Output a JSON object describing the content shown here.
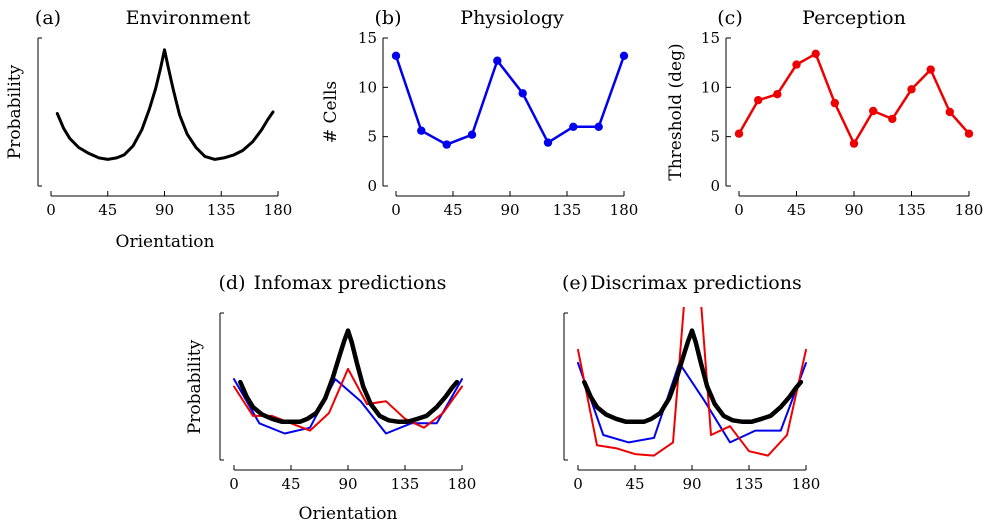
{
  "chart_data": [
    {
      "id": "a",
      "type": "line",
      "panel_label": "(a)",
      "title": "Environment",
      "xlabel": "Orientation",
      "ylabel": "Probability",
      "xticks": [
        0,
        45,
        90,
        135,
        180
      ],
      "xlim": [
        0,
        180
      ],
      "yticks": [],
      "ylim": [
        0,
        1
      ],
      "series": [
        {
          "color": "#000000",
          "width": 3,
          "markers": false,
          "x": [
            5,
            10,
            15,
            22,
            30,
            38,
            45,
            52,
            58,
            65,
            72,
            78,
            83,
            87,
            90,
            93,
            97,
            102,
            108,
            115,
            122,
            130,
            137,
            145,
            152,
            160,
            167,
            172,
            176
          ],
          "y": [
            0.49,
            0.39,
            0.32,
            0.26,
            0.22,
            0.19,
            0.18,
            0.19,
            0.21,
            0.27,
            0.38,
            0.52,
            0.66,
            0.8,
            0.92,
            0.8,
            0.65,
            0.48,
            0.35,
            0.26,
            0.2,
            0.18,
            0.19,
            0.21,
            0.24,
            0.3,
            0.38,
            0.45,
            0.5
          ]
        }
      ]
    },
    {
      "id": "b",
      "type": "line",
      "panel_label": "(b)",
      "title": "Physiology",
      "xlabel": "",
      "ylabel": "# Cells",
      "xticks": [
        0,
        45,
        90,
        135,
        180
      ],
      "xlim": [
        0,
        180
      ],
      "yticks": [
        0,
        5,
        10,
        15
      ],
      "ylim": [
        0,
        15
      ],
      "series": [
        {
          "color": "#0000ee",
          "width": 2.5,
          "markers": true,
          "x": [
            0,
            20,
            40,
            60,
            80,
            100,
            120,
            140,
            160,
            180
          ],
          "y": [
            13.2,
            5.6,
            4.2,
            5.2,
            12.7,
            9.4,
            4.4,
            6.0,
            6.0,
            13.2
          ]
        }
      ]
    },
    {
      "id": "c",
      "type": "line",
      "panel_label": "(c)",
      "title": "Perception",
      "xlabel": "",
      "ylabel": "Threshold (deg)",
      "xticks": [
        0,
        45,
        90,
        135,
        180
      ],
      "xlim": [
        0,
        180
      ],
      "yticks": [
        0,
        5,
        10,
        15
      ],
      "ylim": [
        0,
        15
      ],
      "series": [
        {
          "color": "#ee0000",
          "width": 2.5,
          "markers": true,
          "x": [
            0,
            15,
            30,
            45,
            60,
            75,
            90,
            105,
            120,
            135,
            150,
            165,
            180
          ],
          "y": [
            5.3,
            8.7,
            9.3,
            12.3,
            13.4,
            8.4,
            4.3,
            7.6,
            6.8,
            9.8,
            11.8,
            7.5,
            5.3
          ]
        }
      ]
    },
    {
      "id": "d",
      "type": "line",
      "panel_label": "(d)",
      "title": "Infomax predictions",
      "xlabel": "Orientation",
      "ylabel": "Probability",
      "xticks": [
        0,
        45,
        90,
        135,
        180
      ],
      "xlim": [
        0,
        180
      ],
      "yticks": [],
      "ylim": [
        0,
        1
      ],
      "series": [
        {
          "color": "#0000ee",
          "width": 2,
          "markers": false,
          "x": [
            0,
            20,
            40,
            60,
            80,
            100,
            120,
            140,
            160,
            180
          ],
          "y": [
            0.55,
            0.25,
            0.18,
            0.22,
            0.55,
            0.4,
            0.18,
            0.25,
            0.25,
            0.55
          ]
        },
        {
          "color": "#ee0000",
          "width": 2,
          "markers": false,
          "x": [
            0,
            15,
            30,
            45,
            60,
            75,
            90,
            105,
            120,
            135,
            150,
            165,
            180
          ],
          "y": [
            0.5,
            0.3,
            0.3,
            0.25,
            0.2,
            0.32,
            0.62,
            0.38,
            0.4,
            0.28,
            0.22,
            0.32,
            0.5
          ]
        },
        {
          "color": "#000000",
          "width": 4.5,
          "markers": false,
          "x": [
            5,
            10,
            15,
            22,
            30,
            38,
            45,
            52,
            58,
            65,
            72,
            78,
            83,
            87,
            90,
            93,
            97,
            102,
            108,
            115,
            122,
            130,
            137,
            145,
            152,
            160,
            167,
            172,
            176
          ],
          "y": [
            0.53,
            0.43,
            0.36,
            0.31,
            0.28,
            0.26,
            0.26,
            0.26,
            0.28,
            0.32,
            0.42,
            0.56,
            0.7,
            0.81,
            0.88,
            0.8,
            0.66,
            0.5,
            0.38,
            0.3,
            0.27,
            0.26,
            0.26,
            0.28,
            0.3,
            0.36,
            0.43,
            0.49,
            0.53
          ]
        }
      ]
    },
    {
      "id": "e",
      "type": "line",
      "panel_label": "(e)",
      "title": "Discrimax predictions",
      "xlabel": "",
      "ylabel": "",
      "xticks": [
        0,
        45,
        90,
        135,
        180
      ],
      "xlim": [
        0,
        180
      ],
      "yticks": [],
      "ylim": [
        0,
        1
      ],
      "series": [
        {
          "color": "#0000ee",
          "width": 2,
          "markers": false,
          "x": [
            0,
            20,
            40,
            60,
            80,
            100,
            120,
            140,
            160,
            180
          ],
          "y": [
            0.66,
            0.17,
            0.12,
            0.15,
            0.66,
            0.4,
            0.12,
            0.2,
            0.2,
            0.66
          ]
        },
        {
          "color": "#ee0000",
          "width": 2,
          "markers": false,
          "x": [
            0,
            15,
            30,
            45,
            60,
            75,
            85,
            96,
            105,
            120,
            135,
            150,
            165,
            180
          ],
          "y": [
            0.75,
            0.1,
            0.08,
            0.04,
            0.03,
            0.12,
            1.2,
            1.2,
            0.17,
            0.23,
            0.06,
            0.03,
            0.17,
            0.75
          ]
        },
        {
          "color": "#000000",
          "width": 4.5,
          "markers": false,
          "x": [
            5,
            10,
            15,
            22,
            30,
            38,
            45,
            52,
            58,
            65,
            72,
            78,
            83,
            87,
            90,
            93,
            97,
            102,
            108,
            115,
            122,
            130,
            137,
            145,
            152,
            160,
            167,
            172,
            176
          ],
          "y": [
            0.53,
            0.43,
            0.36,
            0.31,
            0.28,
            0.26,
            0.26,
            0.26,
            0.28,
            0.32,
            0.42,
            0.56,
            0.7,
            0.81,
            0.88,
            0.8,
            0.66,
            0.5,
            0.38,
            0.3,
            0.27,
            0.26,
            0.26,
            0.28,
            0.3,
            0.36,
            0.43,
            0.49,
            0.53
          ]
        }
      ]
    }
  ]
}
